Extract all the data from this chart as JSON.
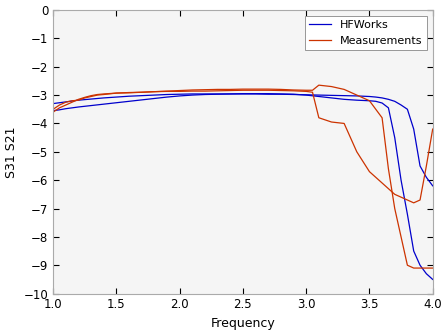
{
  "title": "",
  "xlabel": "Frequency",
  "ylabel": "S31 S21",
  "xlim": [
    1,
    4
  ],
  "ylim": [
    -10,
    0
  ],
  "xticks": [
    1,
    1.5,
    2,
    2.5,
    3,
    3.5,
    4
  ],
  "yticks": [
    0,
    -1,
    -2,
    -3,
    -4,
    -5,
    -6,
    -7,
    -8,
    -9,
    -10
  ],
  "legend": [
    "HFWorks",
    "Measurements"
  ],
  "hfworks_color": "#0000cc",
  "measurements_color": "#cc3300",
  "bg_color": "#ffffff",
  "axes_bg": "#f5f5f5",
  "hfworks_s21": {
    "x": [
      1.0,
      1.05,
      1.1,
      1.15,
      1.2,
      1.3,
      1.4,
      1.5,
      1.6,
      1.7,
      1.8,
      1.9,
      2.0,
      2.1,
      2.2,
      2.3,
      2.4,
      2.5,
      2.6,
      2.7,
      2.8,
      2.9,
      3.0,
      3.1,
      3.2,
      3.3,
      3.4,
      3.5,
      3.55,
      3.6,
      3.65,
      3.7,
      3.75,
      3.8,
      3.85,
      3.9,
      3.95,
      4.0
    ],
    "y": [
      -3.55,
      -3.52,
      -3.48,
      -3.45,
      -3.42,
      -3.37,
      -3.32,
      -3.27,
      -3.22,
      -3.17,
      -3.12,
      -3.07,
      -3.03,
      -3.0,
      -2.98,
      -2.97,
      -2.96,
      -2.95,
      -2.95,
      -2.95,
      -2.96,
      -2.97,
      -3.0,
      -3.05,
      -3.1,
      -3.15,
      -3.18,
      -3.2,
      -3.22,
      -3.28,
      -3.45,
      -4.5,
      -6.0,
      -7.2,
      -8.5,
      -9.0,
      -9.3,
      -9.5
    ]
  },
  "hfworks_s31": {
    "x": [
      1.0,
      1.05,
      1.1,
      1.15,
      1.2,
      1.3,
      1.4,
      1.5,
      1.6,
      1.7,
      1.8,
      1.9,
      2.0,
      2.1,
      2.2,
      2.3,
      2.4,
      2.5,
      2.6,
      2.7,
      2.8,
      2.9,
      3.0,
      3.1,
      3.2,
      3.3,
      3.4,
      3.5,
      3.55,
      3.6,
      3.65,
      3.7,
      3.75,
      3.8,
      3.85,
      3.9,
      3.95,
      4.0
    ],
    "y": [
      -3.3,
      -3.27,
      -3.24,
      -3.21,
      -3.18,
      -3.14,
      -3.1,
      -3.07,
      -3.04,
      -3.02,
      -3.0,
      -2.98,
      -2.97,
      -2.96,
      -2.96,
      -2.96,
      -2.96,
      -2.96,
      -2.96,
      -2.97,
      -2.97,
      -2.98,
      -2.99,
      -3.0,
      -3.01,
      -3.02,
      -3.03,
      -3.05,
      -3.07,
      -3.1,
      -3.15,
      -3.22,
      -3.35,
      -3.5,
      -4.2,
      -5.5,
      -5.9,
      -6.2
    ]
  },
  "meas_s21": {
    "x": [
      1.0,
      1.05,
      1.1,
      1.15,
      1.2,
      1.25,
      1.3,
      1.35,
      1.4,
      1.5,
      1.6,
      1.7,
      1.8,
      1.9,
      2.0,
      2.1,
      2.2,
      2.3,
      2.4,
      2.5,
      2.6,
      2.7,
      2.8,
      2.9,
      3.0,
      3.05,
      3.1,
      3.2,
      3.3,
      3.4,
      3.5,
      3.55,
      3.6,
      3.65,
      3.7,
      3.75,
      3.8,
      3.85,
      3.9,
      3.95,
      4.0
    ],
    "y": [
      -3.5,
      -3.35,
      -3.25,
      -3.2,
      -3.18,
      -3.1,
      -3.05,
      -3.0,
      -2.98,
      -2.93,
      -2.91,
      -2.9,
      -2.88,
      -2.87,
      -2.87,
      -2.86,
      -2.86,
      -2.85,
      -2.84,
      -2.83,
      -2.83,
      -2.83,
      -2.84,
      -2.85,
      -2.87,
      -2.9,
      -3.8,
      -3.95,
      -4.0,
      -5.0,
      -5.7,
      -5.9,
      -6.1,
      -6.3,
      -6.5,
      -6.6,
      -6.7,
      -6.8,
      -6.7,
      -5.5,
      -4.2
    ]
  },
  "meas_s31": {
    "x": [
      1.0,
      1.05,
      1.1,
      1.15,
      1.2,
      1.25,
      1.3,
      1.35,
      1.4,
      1.5,
      1.6,
      1.7,
      1.8,
      1.9,
      2.0,
      2.1,
      2.2,
      2.3,
      2.4,
      2.5,
      2.6,
      2.7,
      2.8,
      2.9,
      3.0,
      3.05,
      3.1,
      3.2,
      3.3,
      3.4,
      3.5,
      3.55,
      3.6,
      3.65,
      3.7,
      3.75,
      3.8,
      3.85,
      3.9,
      3.95,
      4.0
    ],
    "y": [
      -3.6,
      -3.45,
      -3.35,
      -3.25,
      -3.15,
      -3.08,
      -3.02,
      -2.98,
      -2.96,
      -2.93,
      -2.92,
      -2.9,
      -2.88,
      -2.86,
      -2.84,
      -2.82,
      -2.81,
      -2.8,
      -2.8,
      -2.79,
      -2.79,
      -2.79,
      -2.8,
      -2.82,
      -2.83,
      -2.83,
      -2.65,
      -2.7,
      -2.8,
      -3.0,
      -3.2,
      -3.5,
      -3.8,
      -5.6,
      -7.0,
      -8.0,
      -9.0,
      -9.1,
      -9.1,
      -9.1,
      -9.1
    ]
  }
}
